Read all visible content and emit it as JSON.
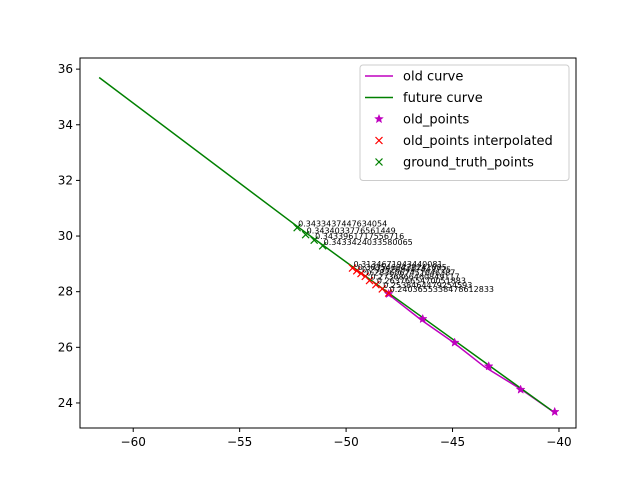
{
  "chart_data": {
    "type": "line",
    "xlim": [
      -62.5,
      -39.2
    ],
    "ylim": [
      23.1,
      36.4
    ],
    "x_ticks": [
      -60,
      -55,
      -50,
      -45,
      -40
    ],
    "y_ticks": [
      24,
      26,
      28,
      30,
      32,
      34,
      36
    ],
    "x_tick_labels": [
      "−60",
      "−55",
      "−50",
      "−45",
      "−40"
    ],
    "y_tick_labels": [
      "24",
      "26",
      "28",
      "30",
      "32",
      "34",
      "36"
    ],
    "grid": false,
    "legend_position": "top-right",
    "colors": {
      "old_curve": "#bf00bf",
      "future_curve": "#008000",
      "old_points": "#bf00bf",
      "old_points_interpolated": "#ff0000",
      "ground_truth_points": "#008000"
    },
    "series": [
      {
        "name": "old curve",
        "kind": "line",
        "x": [
          -48.0,
          -46.5,
          -45.0,
          -43.5,
          -41.8,
          -40.2
        ],
        "y": [
          27.9,
          27.0,
          26.2,
          25.3,
          24.5,
          23.65
        ]
      },
      {
        "name": "future curve",
        "kind": "line",
        "x": [
          -61.6,
          -52.3,
          -48.0,
          -40.2
        ],
        "y": [
          35.7,
          30.35,
          27.95,
          23.65
        ]
      },
      {
        "name": "old_points",
        "kind": "marker",
        "marker": "star",
        "x": [
          -48.0,
          -46.4,
          -44.9,
          -43.3,
          -41.8,
          -40.2
        ],
        "y": [
          27.92,
          27.02,
          26.17,
          25.32,
          24.48,
          23.68
        ]
      },
      {
        "name": "old_points interpolated",
        "kind": "marker",
        "marker": "x",
        "x": [
          -49.7,
          -49.5,
          -49.3,
          -49.1,
          -48.9,
          -48.6,
          -48.3,
          -48.0
        ],
        "y": [
          28.85,
          28.75,
          28.65,
          28.55,
          28.4,
          28.25,
          28.1,
          27.95
        ]
      },
      {
        "name": "ground_truth_points",
        "kind": "marker",
        "marker": "x",
        "x": [
          -52.3,
          -51.9,
          -51.5,
          -51.1
        ],
        "y": [
          30.3,
          30.05,
          29.85,
          29.65
        ]
      }
    ],
    "annotations": [
      {
        "text": "0.3433437447634054",
        "x": -52.3,
        "y": 30.3
      },
      {
        "text": "0.3434033776561449",
        "x": -51.9,
        "y": 30.05
      },
      {
        "text": "0.3433961717556716",
        "x": -51.5,
        "y": 29.85
      },
      {
        "text": "0.3433424033580065",
        "x": -51.1,
        "y": 29.65
      },
      {
        "text": "0.3134671943440081",
        "x": -49.7,
        "y": 28.85
      },
      {
        "text": "0.3035469438241085",
        "x": -49.5,
        "y": 28.75
      },
      {
        "text": "0.2935268447443725",
        "x": -49.3,
        "y": 28.65
      },
      {
        "text": "0.2836067451646387",
        "x": -49.1,
        "y": 28.55
      },
      {
        "text": "0.2736866460849117",
        "x": -48.9,
        "y": 28.4
      },
      {
        "text": "0.2637665470051883",
        "x": -48.6,
        "y": 28.25
      },
      {
        "text": "0.2538464479254593",
        "x": -48.3,
        "y": 28.1
      },
      {
        "text": "0.2403655338478612833",
        "x": -48.0,
        "y": 27.95
      }
    ]
  }
}
